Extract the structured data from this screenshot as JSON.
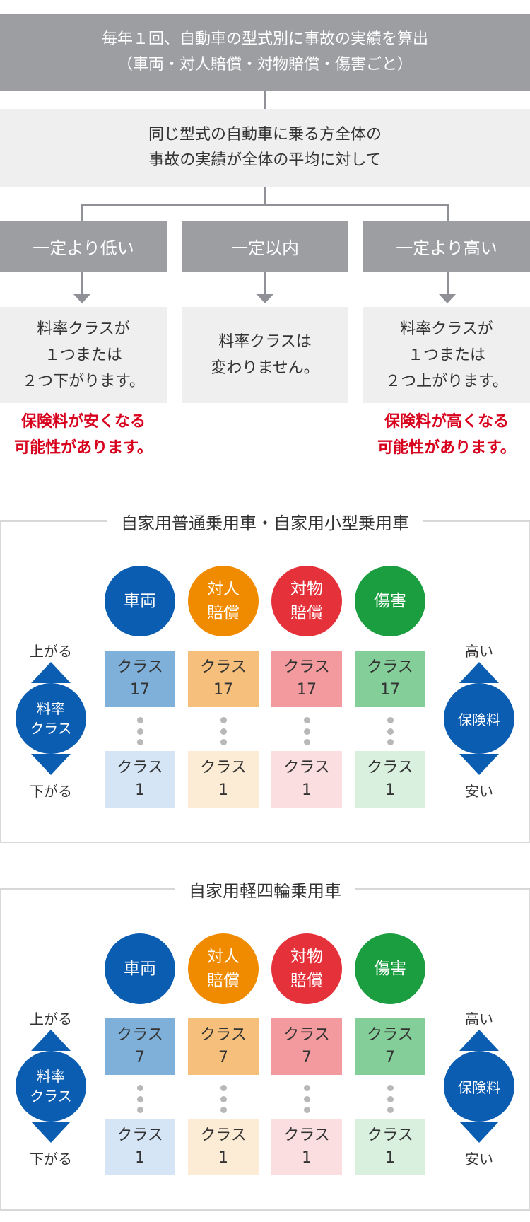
{
  "flow": {
    "top_line1": "毎年１回、自動車の型式別に事故の実績を算出",
    "top_line2": "（車両・対人賠償・対物賠償・傷害ごと）",
    "mid_line1": "同じ型式の自動車に乗る方全体の",
    "mid_line2": "事故の実績が全体の平均に対して",
    "branches": [
      {
        "label": "一定より低い",
        "result": [
          "料率クラスが",
          "１つまたは",
          "２つ下がります。"
        ],
        "note": [
          "保険料が安くなる",
          "可能性があります。"
        ]
      },
      {
        "label": "一定以内",
        "result": [
          "料率クラスは",
          "変わりません。"
        ],
        "note": []
      },
      {
        "label": "一定より高い",
        "result": [
          "料率クラスが",
          "１つまたは",
          "２つ上がります。"
        ],
        "note": [
          "保険料が高くなる",
          "可能性があります。"
        ]
      }
    ]
  },
  "panels": [
    {
      "title": "自家用普通乗用車・自家用小型乗用車",
      "top_class": "17",
      "bottom_class": "1"
    },
    {
      "title": "自家用軽四輪乗用車",
      "top_class": "7",
      "bottom_class": "1"
    }
  ],
  "categories": [
    {
      "line1": "車両",
      "line2": "",
      "color": "#0b5db1",
      "top_color": "#7fb0da",
      "bottom_color": "#d6e5f5"
    },
    {
      "line1": "対人",
      "line2": "賠償",
      "color": "#f08b00",
      "top_color": "#f6c07c",
      "bottom_color": "#fdecd5"
    },
    {
      "line1": "対物",
      "line2": "賠償",
      "color": "#e5323a",
      "top_color": "#f29a9d",
      "bottom_color": "#fbdfe0"
    },
    {
      "line1": "傷害",
      "line2": "",
      "color": "#1a9e3f",
      "top_color": "#84cf99",
      "bottom_color": "#d9f0df"
    }
  ],
  "class_word": "クラス",
  "left_axis": {
    "top": "上がる",
    "label1": "料率",
    "label2": "クラス",
    "bottom": "下がる"
  },
  "right_axis": {
    "top": "高い",
    "label": "保険料",
    "bottom": "安い"
  }
}
